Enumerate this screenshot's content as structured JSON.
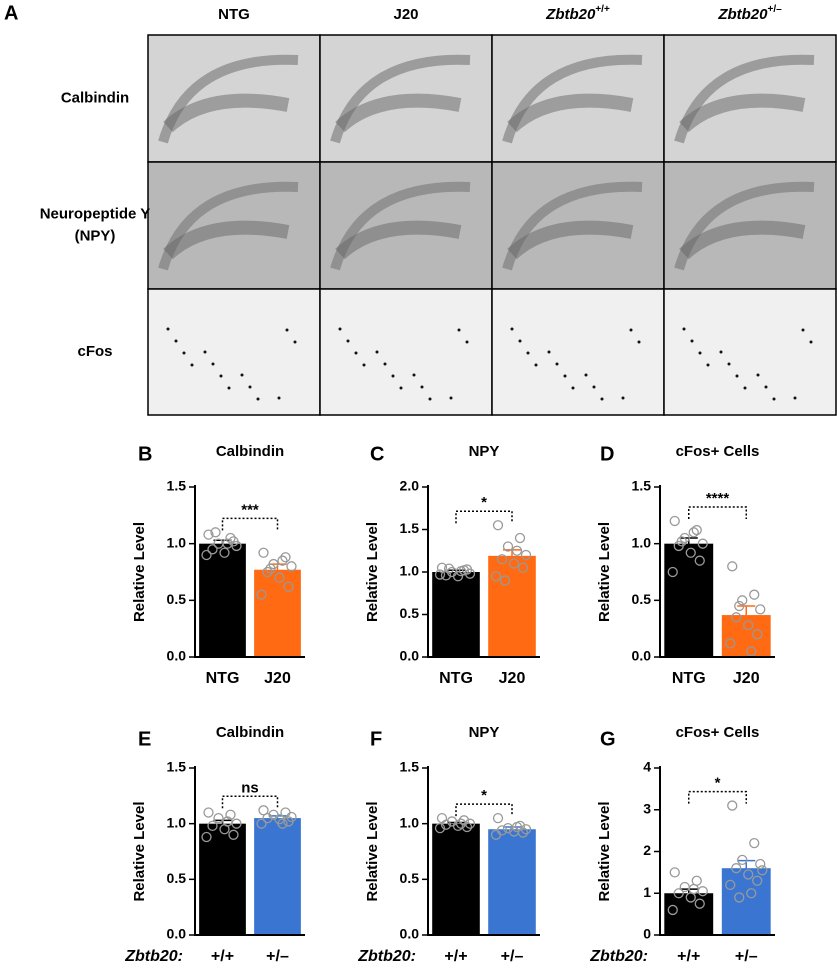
{
  "panel_a": {
    "letter": "A",
    "columns": [
      "NTG",
      "J20",
      {
        "italic": "Zbtb20",
        "sup": "+/+"
      },
      {
        "italic": "Zbtb20",
        "sup": "+/–"
      }
    ],
    "rows": [
      [
        "Calbindin"
      ],
      [
        "Neuropeptide Y",
        "(NPY)"
      ],
      [
        "cFos"
      ]
    ]
  },
  "chart_data": [
    {
      "type": "bar",
      "panel": "B",
      "title": "Calbindin",
      "ylabel": "Relative Level",
      "categories": [
        "NTG",
        "J20"
      ],
      "colors": [
        "#000000",
        "#ff6a13"
      ],
      "values": [
        1.0,
        0.77
      ],
      "errors": [
        0.03,
        0.05
      ],
      "points": [
        [
          1.08,
          1.05,
          1.0,
          0.98,
          0.95,
          0.92,
          1.02,
          0.9,
          1.0,
          1.1
        ],
        [
          0.92,
          0.88,
          0.82,
          0.8,
          0.75,
          0.7,
          0.62,
          0.55,
          0.85,
          0.78
        ]
      ],
      "significance": "***",
      "ylim": [
        0,
        1.5
      ],
      "yticks": [
        {
          "value": 0,
          "label": "0.0"
        },
        0.5,
        {
          "value": 1,
          "label": "1.0"
        },
        1.5
      ]
    },
    {
      "type": "bar",
      "panel": "C",
      "title": "NPY",
      "ylabel": "Relative Level",
      "categories": [
        "NTG",
        "J20"
      ],
      "colors": [
        "#000000",
        "#ff6a13"
      ],
      "values": [
        1.0,
        1.19
      ],
      "errors": [
        0.02,
        0.07
      ],
      "points": [
        [
          1.05,
          1.02,
          1.0,
          0.98,
          0.96,
          0.95,
          1.03,
          0.97,
          1.01,
          1.04
        ],
        [
          1.55,
          1.4,
          1.3,
          1.2,
          1.15,
          1.1,
          1.05,
          0.95,
          1.25,
          0.9
        ]
      ],
      "significance": "*",
      "ylim": [
        0,
        2
      ],
      "yticks": [
        {
          "value": 0,
          "label": "0.0"
        },
        0.5,
        {
          "value": 1,
          "label": "1.0"
        },
        1.5,
        {
          "value": 2,
          "label": "2.0"
        }
      ]
    },
    {
      "type": "bar",
      "panel": "D",
      "title": "cFos+ Cells",
      "ylabel": "Relative Level",
      "categories": [
        "NTG",
        "J20"
      ],
      "colors": [
        "#000000",
        "#ff6a13"
      ],
      "values": [
        1.0,
        0.37
      ],
      "errors": [
        0.05,
        0.08
      ],
      "points": [
        [
          1.2,
          1.12,
          1.05,
          1.0,
          0.98,
          0.92,
          0.85,
          0.75,
          1.1,
          1.02
        ],
        [
          0.8,
          0.55,
          0.5,
          0.42,
          0.35,
          0.28,
          0.2,
          0.12,
          0.05,
          0.45
        ]
      ],
      "significance": "****",
      "ylim": [
        0,
        1.5
      ],
      "yticks": [
        {
          "value": 0,
          "label": "0.0"
        },
        0.5,
        {
          "value": 1,
          "label": "1.0"
        },
        1.5
      ]
    },
    {
      "type": "bar",
      "panel": "E",
      "title": "Calbindin",
      "ylabel": "Relative Level",
      "xlabel": "Zbtb20:",
      "categories": [
        "+/+",
        "+/–"
      ],
      "colors": [
        "#000000",
        "#3a76d1"
      ],
      "values": [
        1.0,
        1.05
      ],
      "errors": [
        0.03,
        0.02
      ],
      "points": [
        [
          1.1,
          1.08,
          1.05,
          1.0,
          0.98,
          0.95,
          0.9,
          0.88,
          1.02
        ],
        [
          1.12,
          1.1,
          1.08,
          1.06,
          1.05,
          1.04,
          1.02,
          1.0,
          1.0
        ]
      ],
      "significance": "ns",
      "ylim": [
        0,
        1.5
      ],
      "yticks": [
        {
          "value": 0,
          "label": "0.0"
        },
        0.5,
        {
          "value": 1,
          "label": "1.0"
        },
        1.5
      ]
    },
    {
      "type": "bar",
      "panel": "F",
      "title": "NPY",
      "ylabel": "Relative Level",
      "xlabel": "Zbtb20:",
      "categories": [
        "+/+",
        "+/–"
      ],
      "colors": [
        "#000000",
        "#3a76d1"
      ],
      "values": [
        1.0,
        0.95
      ],
      "errors": [
        0.01,
        0.02
      ],
      "points": [
        [
          1.05,
          1.03,
          1.02,
          1.0,
          0.99,
          0.98,
          0.97,
          0.96,
          1.0
        ],
        [
          1.05,
          0.98,
          0.96,
          0.95,
          0.94,
          0.93,
          0.92,
          0.9,
          0.97
        ]
      ],
      "significance": "*",
      "ylim": [
        0,
        1.5
      ],
      "yticks": [
        {
          "value": 0,
          "label": "0.0"
        },
        0.5,
        {
          "value": 1,
          "label": "1.0"
        },
        1.5
      ]
    },
    {
      "type": "bar",
      "panel": "G",
      "title": "cFos+ Cells",
      "ylabel": "Relative Level",
      "xlabel": "Zbtb20:",
      "categories": [
        "+/+",
        "+/–"
      ],
      "colors": [
        "#000000",
        "#3a76d1"
      ],
      "values": [
        1.0,
        1.6
      ],
      "errors": [
        0.1,
        0.18
      ],
      "points": [
        [
          1.5,
          1.3,
          1.15,
          1.05,
          1.0,
          0.9,
          0.75,
          0.6,
          1.1
        ],
        [
          3.1,
          2.2,
          1.8,
          1.7,
          1.6,
          1.45,
          1.3,
          1.2,
          1.0,
          0.9,
          1.55
        ]
      ],
      "significance": "*",
      "ylim": [
        0,
        4
      ],
      "yticks": [
        0,
        1,
        2,
        3,
        4
      ]
    }
  ]
}
